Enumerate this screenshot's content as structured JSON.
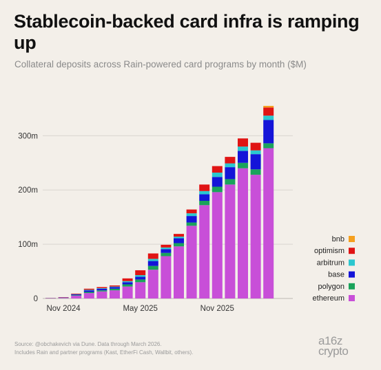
{
  "title": "Stablecoin-backed card infra is ramping up",
  "subtitle": "Collateral deposits across Rain-powered card programs by month ($M)",
  "footer": {
    "line1": "Source: @obchakevich via Dune. Data through March 2026.",
    "line2": "Includes Rain and partner programs (Kast, EtherFi Cash, Wallbit, others)."
  },
  "brand": {
    "line1": "a16z",
    "line2": "crypto"
  },
  "chart_data": {
    "type": "bar",
    "stacked": true,
    "title": "",
    "xlabel": "",
    "ylabel": "",
    "ylim": [
      0,
      360
    ],
    "y_ticks": [
      0,
      100,
      200,
      300
    ],
    "y_tick_labels": [
      "0",
      "100m",
      "200m",
      "300m"
    ],
    "categories": [
      "Oct 2024",
      "Nov 2024",
      "Dec 2024",
      "Jan 2025",
      "Feb 2025",
      "Mar 2025",
      "Apr 2025",
      "May 2025",
      "Jun 2025",
      "Jul 2025",
      "Aug 2025",
      "Sep 2025",
      "Oct 2025",
      "Nov 2025",
      "Dec 2025",
      "Jan 2026",
      "Feb 2026",
      "Mar 2026",
      "Apr 2026"
    ],
    "x_tick_labels": [
      {
        "category": "Nov 2024",
        "label": "Nov 2024"
      },
      {
        "category": "May 2025",
        "label": "May 2025"
      },
      {
        "category": "Nov 2025",
        "label": "Nov 2025"
      }
    ],
    "series": [
      {
        "name": "ethereum",
        "color": "#c84fd8",
        "values": [
          0.5,
          1,
          5,
          10,
          13,
          15,
          22,
          30,
          53,
          78,
          96,
          134,
          172,
          196,
          210,
          240,
          228,
          277,
          0
        ]
      },
      {
        "name": "polygon",
        "color": "#1aa35b",
        "values": [
          0.2,
          0.3,
          1,
          2,
          2,
          3,
          4,
          5,
          7,
          6,
          6,
          6,
          8,
          10,
          10,
          10,
          10,
          9,
          0
        ]
      },
      {
        "name": "base",
        "color": "#1414d8",
        "values": [
          0.2,
          0.5,
          1.5,
          3,
          3,
          3,
          4,
          5,
          9,
          7,
          9,
          12,
          12,
          18,
          22,
          22,
          28,
          43,
          0
        ]
      },
      {
        "name": "arbitrum",
        "color": "#2bc7cf",
        "values": [
          0,
          0,
          0.5,
          1,
          1,
          1,
          2,
          3,
          4,
          3,
          3,
          5,
          6,
          8,
          7,
          8,
          7,
          8,
          0
        ]
      },
      {
        "name": "optimism",
        "color": "#e01414",
        "values": [
          0.2,
          0.5,
          1,
          2,
          2,
          2,
          5,
          9,
          10,
          5,
          5,
          7,
          12,
          12,
          12,
          15,
          14,
          15,
          0
        ]
      },
      {
        "name": "bnb",
        "color": "#f5a01e",
        "values": [
          0,
          0,
          0,
          0,
          0,
          0,
          0,
          0,
          0,
          0,
          0,
          0,
          0,
          0,
          0,
          0,
          0,
          3,
          0
        ]
      }
    ],
    "grid": true,
    "legend_placement": "right"
  }
}
